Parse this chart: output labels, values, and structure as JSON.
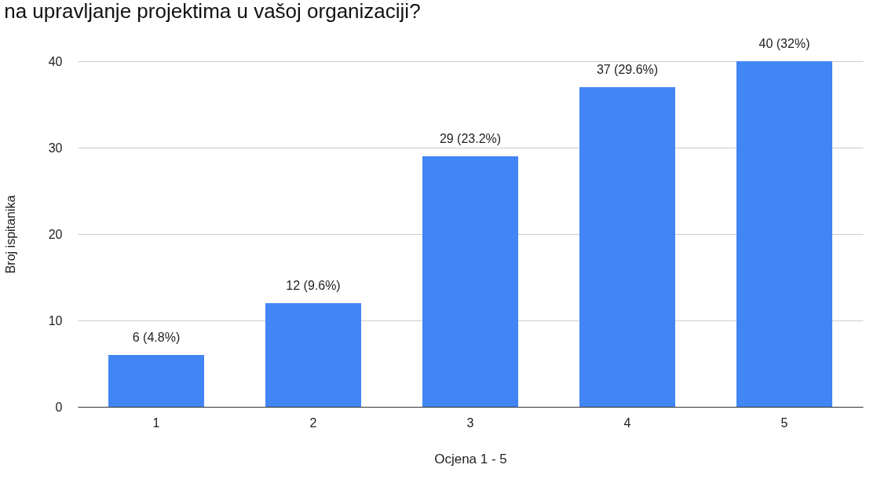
{
  "chart_data": {
    "type": "bar",
    "title": "na upravljanje projektima u vašoj organizaciji?",
    "xlabel": "Ocjena 1 - 5",
    "ylabel": "Broj ispitanika",
    "categories": [
      "1",
      "2",
      "3",
      "4",
      "5"
    ],
    "values": [
      6,
      12,
      29,
      37,
      40
    ],
    "value_labels": [
      "6 (4.8%)",
      "12 (9.6%)",
      "29 (23.2%)",
      "37 (29.6%)",
      "40 (32%)"
    ],
    "color": "#4285f4",
    "ylim": [
      0,
      40
    ],
    "yticks": [
      0,
      10,
      20,
      30,
      40
    ],
    "grid": "y"
  }
}
